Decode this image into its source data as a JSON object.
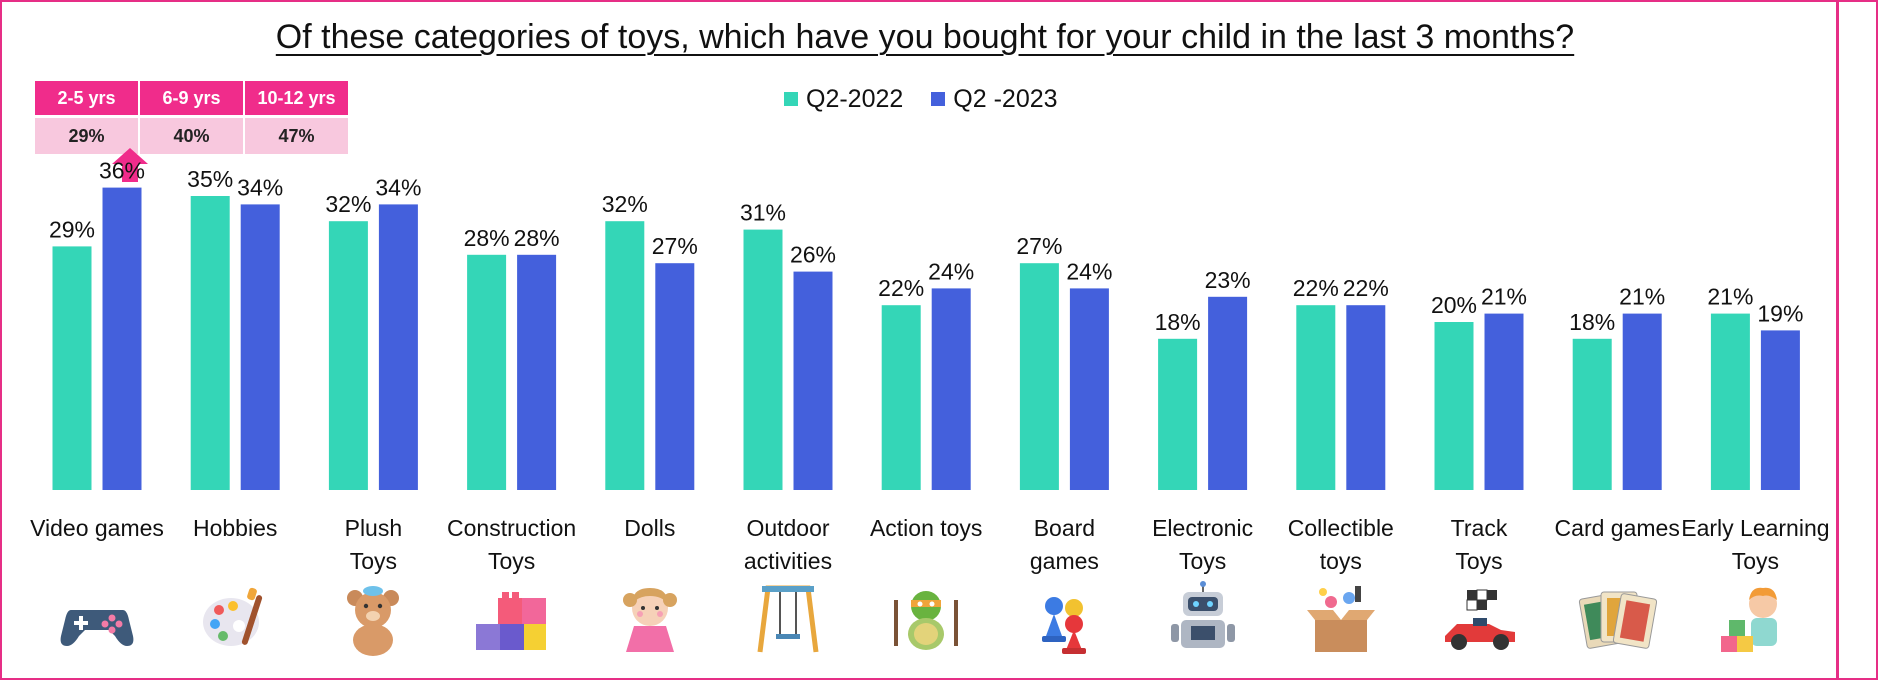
{
  "title": "Of these categories of toys, which have you bought for your child in the last 3 months?",
  "legend": [
    {
      "label": "Q2-2022",
      "color": "#34d6b7"
    },
    {
      "label": "Q2 -2023",
      "color": "#4460dc"
    }
  ],
  "age_breakdown": {
    "headers": [
      "2-5 yrs",
      "6-9 yrs",
      "10-12 yrs"
    ],
    "values": [
      "29%",
      "40%",
      "47%"
    ],
    "highlight_color": "#f02c8b"
  },
  "chart_data": {
    "type": "bar",
    "title": "Of these categories of toys, which have you bought for your child in the last 3 months?",
    "xlabel": "",
    "ylabel": "",
    "ylim": [
      0,
      40
    ],
    "grid": false,
    "legend_position": "top-center",
    "categories": [
      {
        "label": [
          "Video games"
        ],
        "icon": "gamepad-icon"
      },
      {
        "label": [
          "Hobbies"
        ],
        "icon": "paint-palette-icon"
      },
      {
        "label": [
          "Plush",
          "Toys"
        ],
        "icon": "teddy-bear-icon"
      },
      {
        "label": [
          "Construction",
          "Toys"
        ],
        "icon": "building-blocks-icon"
      },
      {
        "label": [
          "Dolls"
        ],
        "icon": "doll-icon"
      },
      {
        "label": [
          "Outdoor",
          "activities"
        ],
        "icon": "swing-icon"
      },
      {
        "label": [
          "Action toys"
        ],
        "icon": "turtle-action-figure-icon"
      },
      {
        "label": [
          "Board",
          "games"
        ],
        "icon": "board-game-pawns-icon"
      },
      {
        "label": [
          "Electronic",
          "Toys"
        ],
        "icon": "robot-icon"
      },
      {
        "label": [
          "Collectible",
          "toys"
        ],
        "icon": "toy-box-icon"
      },
      {
        "label": [
          "Track",
          "Toys"
        ],
        "icon": "race-car-icon"
      },
      {
        "label": [
          "Card games"
        ],
        "icon": "playing-cards-icon"
      },
      {
        "label": [
          "Early Learning",
          "Toys"
        ],
        "icon": "child-with-blocks-icon"
      }
    ],
    "series": [
      {
        "name": "Q2-2022",
        "color": "#34d6b7",
        "values": [
          29,
          35,
          32,
          28,
          32,
          31,
          22,
          27,
          18,
          22,
          20,
          18,
          21
        ]
      },
      {
        "name": "Q2 -2023",
        "color": "#4460dc",
        "values": [
          36,
          34,
          34,
          28,
          27,
          26,
          24,
          24,
          23,
          22,
          21,
          21,
          19
        ]
      }
    ],
    "value_suffix": "%"
  }
}
